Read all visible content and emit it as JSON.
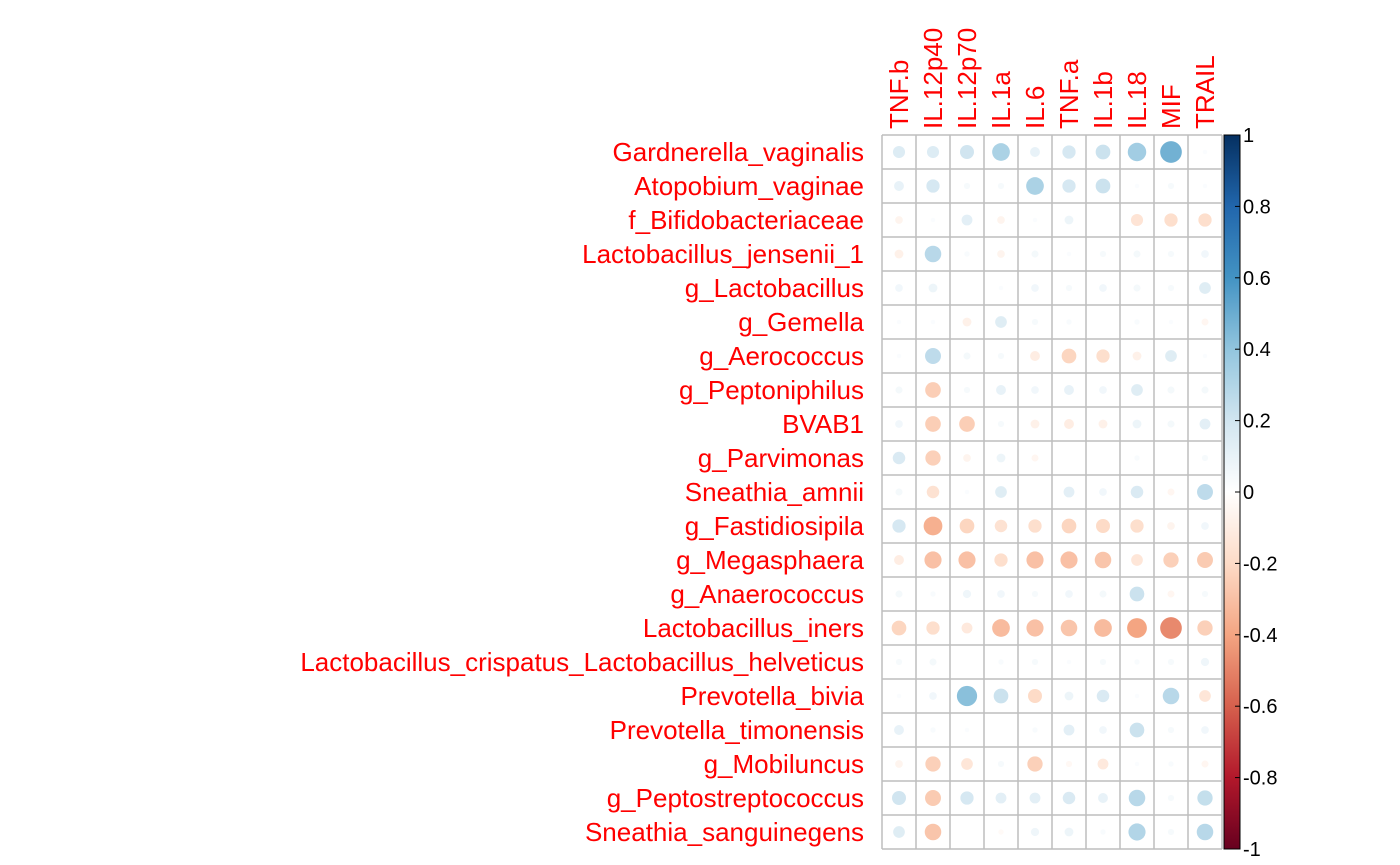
{
  "chart_data": {
    "type": "heatmap",
    "style": "corrplot-circle",
    "columns": [
      "TNF.b",
      "IL.12p40",
      "IL.12p70",
      "IL.1a",
      "IL.6",
      "TNF.a",
      "IL.1b",
      "IL.18",
      "MIF",
      "TRAIL"
    ],
    "rows": [
      "Gardnerella_vaginalis",
      "Atopobium_vaginae",
      "f_Bifidobacteriaceae",
      "Lactobacillus_jensenii_1",
      "g_Lactobacillus",
      "g_Gemella",
      "g_Aerococcus",
      "g_Peptoniphilus",
      "BVAB1",
      "g_Parvimonas",
      "Sneathia_amnii",
      "g_Fastidiosipila",
      "g_Megasphaera",
      "g_Anaerococcus",
      "Lactobacillus_iners",
      "Lactobacillus_crispatus_Lactobacillus_helveticus",
      "Prevotella_bivia",
      "Prevotella_timonensis",
      "g_Mobiluncus",
      "g_Peptostreptococcus",
      "Sneathia_sanguinegens"
    ],
    "values": [
      [
        0.15,
        0.15,
        0.2,
        0.32,
        0.1,
        0.18,
        0.22,
        0.35,
        0.48,
        0.02
      ],
      [
        0.1,
        0.18,
        0.04,
        0.04,
        0.32,
        0.18,
        0.22,
        0.02,
        0.04,
        0.02
      ],
      [
        -0.06,
        0.02,
        0.12,
        -0.06,
        0.02,
        0.08,
        0.0,
        -0.15,
        -0.18,
        -0.18
      ],
      [
        -0.08,
        0.28,
        0.03,
        -0.06,
        0.05,
        0.02,
        0.04,
        0.05,
        0.04,
        0.06
      ],
      [
        0.06,
        0.08,
        0.0,
        0.02,
        0.06,
        0.04,
        0.06,
        0.05,
        0.04,
        0.14
      ],
      [
        0.02,
        0.02,
        -0.08,
        0.14,
        0.04,
        0.03,
        0.0,
        0.03,
        0.02,
        -0.05
      ],
      [
        0.02,
        0.26,
        0.05,
        0.04,
        -0.1,
        -0.22,
        -0.18,
        -0.08,
        0.14,
        0.02
      ],
      [
        0.05,
        -0.25,
        0.04,
        0.1,
        0.06,
        0.1,
        0.06,
        0.14,
        0.05,
        0.05
      ],
      [
        0.06,
        -0.25,
        -0.25,
        0.04,
        -0.08,
        -0.1,
        -0.08,
        0.08,
        0.05,
        0.12
      ],
      [
        0.16,
        -0.24,
        -0.06,
        0.08,
        -0.05,
        0.0,
        0.0,
        0.03,
        0.0,
        0.04
      ],
      [
        0.05,
        -0.16,
        0.02,
        0.14,
        0.0,
        0.12,
        0.06,
        0.16,
        -0.05,
        0.26
      ],
      [
        0.18,
        -0.36,
        -0.22,
        -0.16,
        -0.18,
        -0.22,
        -0.2,
        -0.18,
        -0.06,
        0.06
      ],
      [
        -0.1,
        -0.3,
        -0.3,
        -0.18,
        -0.3,
        -0.3,
        -0.28,
        -0.14,
        -0.24,
        -0.26
      ],
      [
        0.05,
        0.03,
        0.07,
        0.06,
        0.04,
        0.06,
        0.05,
        0.22,
        -0.05,
        0.04
      ],
      [
        -0.22,
        -0.18,
        -0.12,
        -0.32,
        -0.3,
        -0.28,
        -0.32,
        -0.4,
        -0.48,
        -0.24
      ],
      [
        0.04,
        0.05,
        0.0,
        0.03,
        0.04,
        0.02,
        0.04,
        0.03,
        0.04,
        0.07
      ],
      [
        0.02,
        0.06,
        0.42,
        0.22,
        -0.2,
        0.08,
        0.16,
        0.02,
        0.28,
        -0.14
      ],
      [
        0.1,
        0.03,
        0.02,
        0.0,
        0.03,
        0.12,
        0.06,
        0.22,
        0.04,
        0.06
      ],
      [
        -0.06,
        -0.24,
        -0.14,
        0.04,
        -0.24,
        -0.04,
        -0.12,
        0.02,
        0.03,
        -0.05
      ],
      [
        0.2,
        -0.26,
        0.18,
        0.12,
        0.12,
        0.16,
        0.1,
        0.28,
        0.04,
        0.24
      ],
      [
        0.14,
        -0.28,
        0.0,
        -0.03,
        0.07,
        0.08,
        0.03,
        0.3,
        0.04,
        0.28
      ]
    ],
    "value_range": [
      -1,
      1
    ],
    "colorbar_ticks": [
      "1",
      "0.8",
      "0.6",
      "0.4",
      "0.2",
      "0",
      "-0.2",
      "-0.4",
      "-0.6",
      "-0.8",
      "-1"
    ],
    "colorbar_tick_values": [
      1,
      0.8,
      0.6,
      0.4,
      0.2,
      0,
      -0.2,
      -0.4,
      -0.6,
      -0.8,
      -1
    ],
    "colorbar_position": "right",
    "grid": true,
    "colors": {
      "label_color": "#FF0000",
      "grid_color": "#BEBEBE",
      "tick_color": "#000000",
      "scale": [
        "#67001F",
        "#B2182B",
        "#D6604D",
        "#F4A582",
        "#FDDBC7",
        "#FFFFFF",
        "#D1E5F0",
        "#92C5DE",
        "#4393C3",
        "#2166AC",
        "#053061"
      ]
    }
  }
}
